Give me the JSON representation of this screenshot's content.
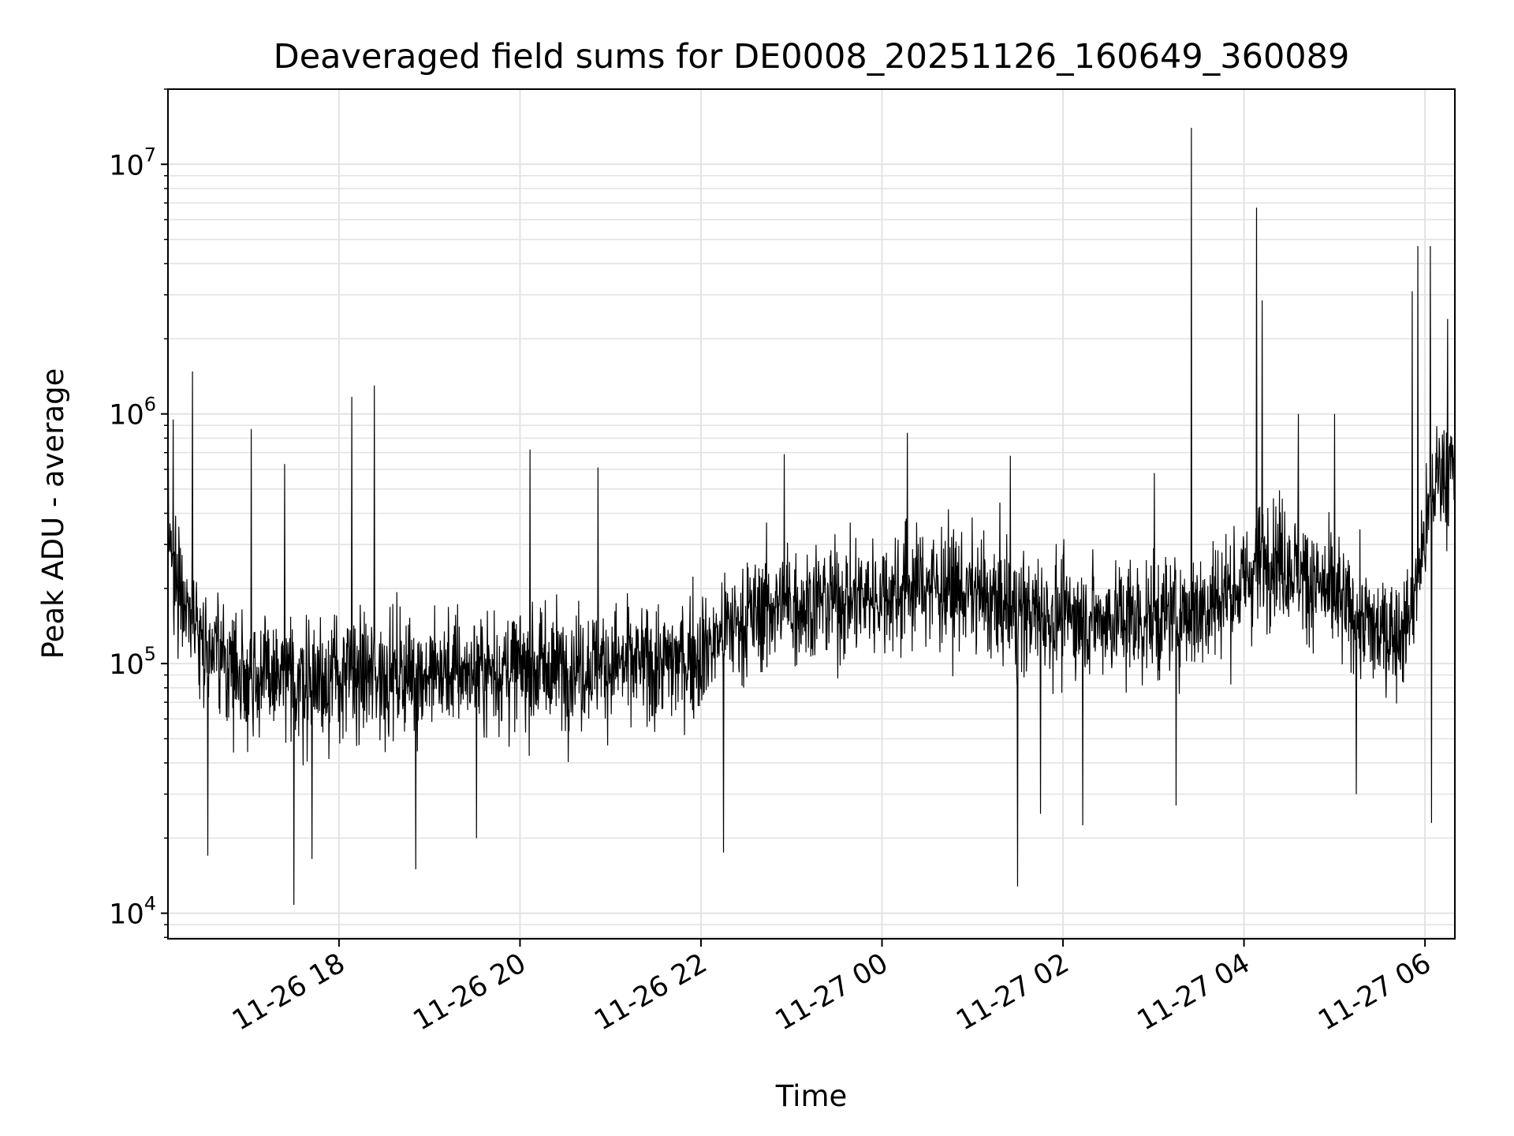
{
  "chart_data": {
    "type": "line",
    "title": "Deaveraged field sums for DE0008_20251126_160649_360089",
    "xlabel": "Time",
    "ylabel": "Peak ADU - average",
    "yscale": "log",
    "ylim": [
      7900,
      20000000
    ],
    "xlim_hours": [
      16.11,
      30.33
    ],
    "x_ticks": [
      {
        "hour": 18,
        "label": "11-26 18"
      },
      {
        "hour": 20,
        "label": "11-26 20"
      },
      {
        "hour": 22,
        "label": "11-26 22"
      },
      {
        "hour": 24,
        "label": "11-27 00"
      },
      {
        "hour": 26,
        "label": "11-27 02"
      },
      {
        "hour": 28,
        "label": "11-27 04"
      },
      {
        "hour": 30,
        "label": "11-27 06"
      }
    ],
    "y_ticks": [
      {
        "value": 10000,
        "base": "10",
        "exp": "4"
      },
      {
        "value": 100000,
        "base": "10",
        "exp": "5"
      },
      {
        "value": 1000000,
        "base": "10",
        "exp": "6"
      },
      {
        "value": 10000000,
        "base": "10",
        "exp": "7"
      }
    ],
    "grid": true,
    "line_color": "#000000",
    "grid_color": "#e3e3e3",
    "baseline": [
      [
        16.11,
        300000
      ],
      [
        16.3,
        180000
      ],
      [
        16.6,
        110000
      ],
      [
        17.0,
        90000
      ],
      [
        17.5,
        85000
      ],
      [
        18.0,
        88000
      ],
      [
        19.0,
        92000
      ],
      [
        20.0,
        95000
      ],
      [
        21.0,
        100000
      ],
      [
        21.5,
        98000
      ],
      [
        22.0,
        110000
      ],
      [
        22.3,
        140000
      ],
      [
        22.8,
        170000
      ],
      [
        23.5,
        180000
      ],
      [
        24.0,
        190000
      ],
      [
        24.5,
        210000
      ],
      [
        25.0,
        190000
      ],
      [
        25.5,
        160000
      ],
      [
        26.0,
        155000
      ],
      [
        26.5,
        150000
      ],
      [
        27.0,
        150000
      ],
      [
        27.5,
        165000
      ],
      [
        28.0,
        210000
      ],
      [
        28.3,
        280000
      ],
      [
        28.7,
        220000
      ],
      [
        29.0,
        180000
      ],
      [
        29.5,
        130000
      ],
      [
        29.8,
        140000
      ],
      [
        29.95,
        260000
      ],
      [
        30.15,
        600000
      ],
      [
        30.33,
        580000
      ]
    ],
    "spikes": [
      {
        "hour": 16.38,
        "value": 1480000
      },
      {
        "hour": 16.17,
        "value": 950000
      },
      {
        "hour": 17.03,
        "value": 870000
      },
      {
        "hour": 17.4,
        "value": 630000
      },
      {
        "hour": 18.14,
        "value": 1170000
      },
      {
        "hour": 18.39,
        "value": 1300000
      },
      {
        "hour": 20.11,
        "value": 720000
      },
      {
        "hour": 20.86,
        "value": 610000
      },
      {
        "hour": 22.92,
        "value": 690000
      },
      {
        "hour": 24.28,
        "value": 840000
      },
      {
        "hour": 25.42,
        "value": 680000
      },
      {
        "hour": 27.01,
        "value": 580000
      },
      {
        "hour": 27.42,
        "value": 14000000
      },
      {
        "hour": 28.14,
        "value": 6700000
      },
      {
        "hour": 28.2,
        "value": 2850000
      },
      {
        "hour": 28.6,
        "value": 1000000
      },
      {
        "hour": 29.0,
        "value": 1000000
      },
      {
        "hour": 29.86,
        "value": 3100000
      },
      {
        "hour": 29.92,
        "value": 4700000
      },
      {
        "hour": 30.06,
        "value": 4700000
      },
      {
        "hour": 30.25,
        "value": 2400000
      }
    ],
    "dips": [
      {
        "hour": 17.5,
        "value": 10800
      },
      {
        "hour": 16.55,
        "value": 17000
      },
      {
        "hour": 17.7,
        "value": 16500
      },
      {
        "hour": 18.85,
        "value": 15000
      },
      {
        "hour": 19.52,
        "value": 20000
      },
      {
        "hour": 22.25,
        "value": 17500
      },
      {
        "hour": 25.5,
        "value": 12800
      },
      {
        "hour": 25.75,
        "value": 25000
      },
      {
        "hour": 26.22,
        "value": 22500
      },
      {
        "hour": 27.25,
        "value": 27000
      },
      {
        "hour": 29.24,
        "value": 30000
      },
      {
        "hour": 30.07,
        "value": 23000
      }
    ]
  }
}
